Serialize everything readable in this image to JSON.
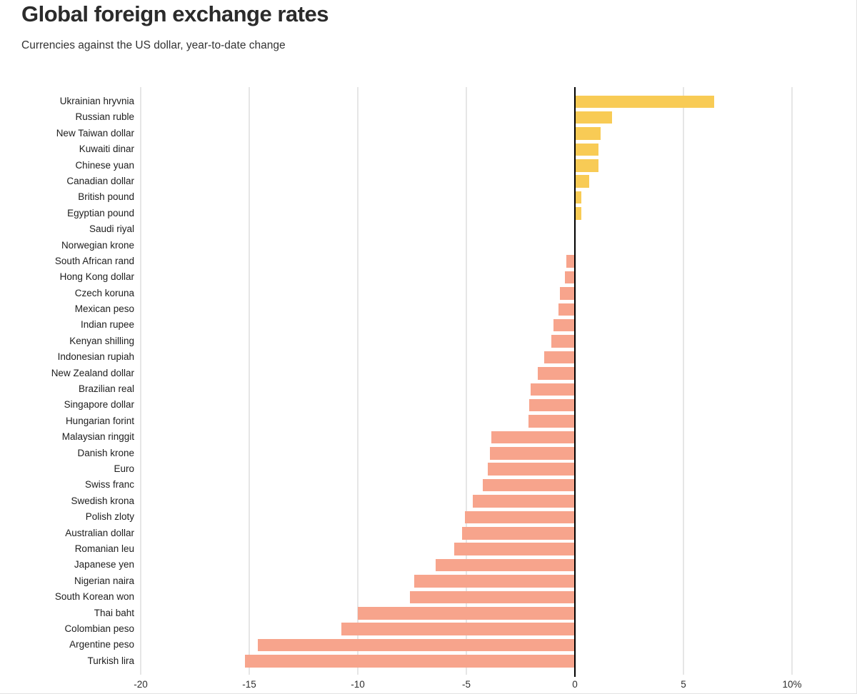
{
  "header": {
    "title": "Global foreign exchange rates",
    "subtitle": "Currencies against the US dollar, year-to-date change"
  },
  "chart_data": {
    "type": "bar",
    "orientation": "horizontal",
    "title": "Global foreign exchange rates",
    "subtitle": "Currencies against the US dollar, year-to-date change",
    "unit": "percent change vs US dollar, year-to-date",
    "xlim": [
      -20,
      10
    ],
    "grid": "vertical",
    "legend": "none",
    "x_ticks": [
      {
        "value": -20,
        "label": "-20"
      },
      {
        "value": -15,
        "label": "-15"
      },
      {
        "value": -10,
        "label": "-10"
      },
      {
        "value": -5,
        "label": "-5"
      },
      {
        "value": 0,
        "label": "0"
      },
      {
        "value": 5,
        "label": "5"
      },
      {
        "value": 10,
        "label": "10%"
      }
    ],
    "categories": [
      "Ukrainian hryvnia",
      "Russian ruble",
      "New Taiwan dollar",
      "Kuwaiti dinar",
      "Chinese yuan",
      "Canadian dollar",
      "British pound",
      "Egyptian pound",
      "Saudi riyal",
      "Norwegian krone",
      "South African rand",
      "Hong Kong dollar",
      "Czech koruna",
      "Mexican peso",
      "Indian rupee",
      "Kenyan shilling",
      "Indonesian rupiah",
      "New Zealand dollar",
      "Brazilian real",
      "Singapore dollar",
      "Hungarian forint",
      "Malaysian ringgit",
      "Danish krone",
      "Euro",
      "Swiss franc",
      "Swedish krona",
      "Polish zloty",
      "Australian dollar",
      "Romanian leu",
      "Japanese yen",
      "Nigerian naira",
      "South Korean won",
      "Thai baht",
      "Colombian peso",
      "Argentine peso",
      "Turkish lira"
    ],
    "values": [
      6.4,
      1.7,
      1.2,
      1.1,
      1.1,
      0.65,
      0.3,
      0.3,
      0.0,
      0.0,
      -0.4,
      -0.45,
      -0.7,
      -0.75,
      -1.0,
      -1.1,
      -1.4,
      -1.7,
      -2.05,
      -2.1,
      -2.15,
      -3.85,
      -3.9,
      -4.0,
      -4.25,
      -4.7,
      -5.05,
      -5.2,
      -5.55,
      -6.4,
      -7.4,
      -7.6,
      -10.0,
      -10.75,
      -14.6,
      -15.2
    ],
    "colors": {
      "positive": "#F8CB55",
      "negative": "#F7A48C",
      "zero_line": "#000000",
      "gridline": "#cccccc"
    }
  }
}
